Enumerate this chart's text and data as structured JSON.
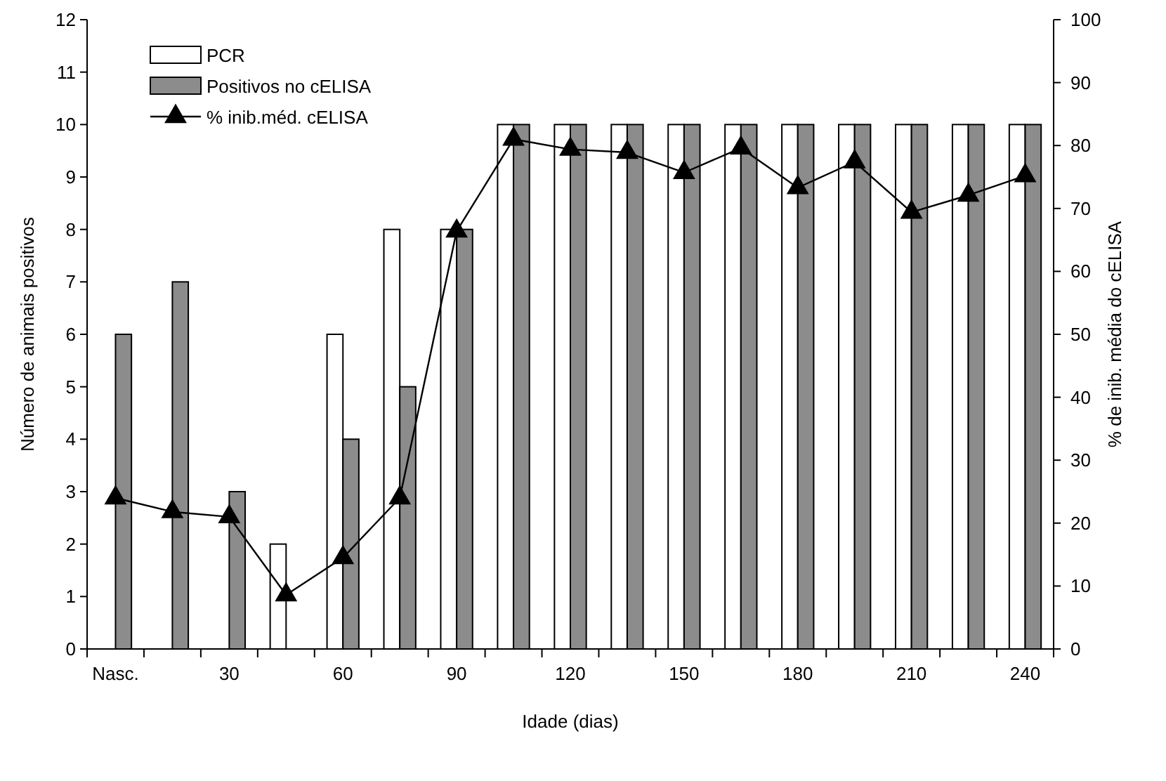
{
  "chart_data": {
    "type": "bar",
    "xlabel": "Idade (dias)",
    "ylabel": "Número de animais positivos",
    "y2label": "% de inib. média do cELISA",
    "categories": [
      "Nasc.",
      null,
      "30",
      null,
      "60",
      null,
      "90",
      null,
      "120",
      null,
      "150",
      null,
      "180",
      null,
      "210",
      null,
      "240"
    ],
    "series": [
      {
        "name": "PCR",
        "color": "#ffffff",
        "values": [
          0,
          0,
          0,
          2,
          6,
          8,
          8,
          10,
          10,
          10,
          10,
          10,
          10,
          10,
          10,
          10,
          10
        ]
      },
      {
        "name": "Positivos no cELISA",
        "color": "#8c8c8c",
        "values": [
          6,
          7,
          3,
          0,
          4,
          5,
          8,
          10,
          10,
          10,
          10,
          10,
          10,
          10,
          10,
          10,
          10
        ]
      },
      {
        "name": "% inib.méd. cELISA",
        "type": "line",
        "axis": "y2",
        "color": "#000000",
        "marker": "triangle",
        "values": [
          24.0,
          21.8,
          21.0,
          8.6,
          14.5,
          24.0,
          66.4,
          81.0,
          79.4,
          78.9,
          75.7,
          79.6,
          73.3,
          77.4,
          69.4,
          72.1,
          75.2
        ]
      }
    ],
    "ylim": [
      0,
      12
    ],
    "yticks": [
      0,
      1,
      2,
      3,
      4,
      5,
      6,
      7,
      8,
      9,
      10,
      11,
      12
    ],
    "y2lim": [
      0,
      100
    ],
    "y2ticks": [
      0,
      10,
      20,
      30,
      40,
      50,
      60,
      70,
      80,
      90,
      100
    ],
    "grid": false,
    "legend": "top left"
  }
}
